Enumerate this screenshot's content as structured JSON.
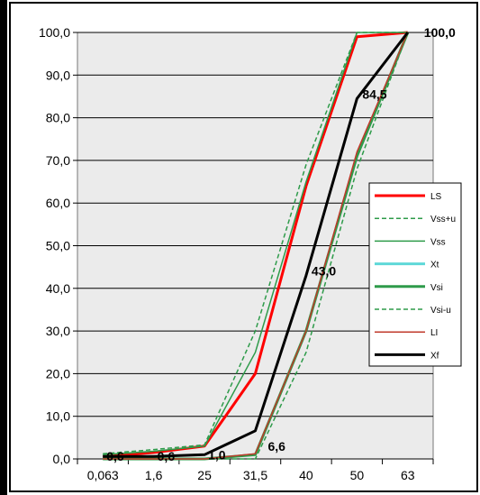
{
  "chart_data": {
    "type": "line",
    "title": "",
    "xlabel": "",
    "ylabel": "",
    "categories": [
      "0,063",
      "1,6",
      "25",
      "31,5",
      "40",
      "50",
      "63"
    ],
    "ylim": [
      0,
      100
    ],
    "y_ticks": [
      "0,0",
      "10,0",
      "20,0",
      "30,0",
      "40,0",
      "50,0",
      "60,0",
      "70,0",
      "80,0",
      "90,0",
      "100,0"
    ],
    "grid": "horizontal",
    "legend_position": "right",
    "series": [
      {
        "name": "LS",
        "color": "#ff0000",
        "dash": "solid",
        "width": 3,
        "values": [
          0.5,
          1.5,
          3,
          20,
          64,
          99,
          100
        ]
      },
      {
        "name": "Vss+u",
        "color": "#2e9b4a",
        "dash": "dashed",
        "width": 1.5,
        "values": [
          1.2,
          2.2,
          3.3,
          30,
          69,
          100,
          100
        ]
      },
      {
        "name": "Vss",
        "color": "#2e9b4a",
        "dash": "solid",
        "width": 1.5,
        "values": [
          1,
          1.8,
          3,
          25,
          65,
          100,
          100
        ]
      },
      {
        "name": "Xt",
        "color": "#5fd8d8",
        "dash": "solid",
        "width": 3,
        "values": [
          null,
          null,
          null,
          null,
          null,
          null,
          null
        ]
      },
      {
        "name": "Vsi",
        "color": "#2e9b4a",
        "dash": "solid",
        "width": 3,
        "values": [
          0,
          0,
          0,
          1,
          30,
          71,
          100
        ]
      },
      {
        "name": "Vsi-u",
        "color": "#2e9b4a",
        "dash": "dashed",
        "width": 1.5,
        "values": [
          0,
          0,
          0,
          0,
          25,
          68,
          100
        ]
      },
      {
        "name": "LI",
        "color": "#c0392b",
        "dash": "solid",
        "width": 1.5,
        "values": [
          0,
          0,
          0,
          1.2,
          30,
          72,
          100
        ]
      },
      {
        "name": "Xf",
        "color": "#000000",
        "dash": "solid",
        "width": 3,
        "values": [
          0.6,
          0.6,
          1.0,
          6.6,
          43.0,
          84.5,
          100.0
        ]
      }
    ],
    "data_labels": [
      {
        "category": "0,063",
        "value": 0.6,
        "text": "0,6"
      },
      {
        "category": "1,6",
        "value": 0.6,
        "text": "0,6"
      },
      {
        "category": "25",
        "value": 1.0,
        "text": "1,0"
      },
      {
        "category": "31,5",
        "value": 6.6,
        "text": "6,6"
      },
      {
        "category": "40",
        "value": 43.0,
        "text": "43,0"
      },
      {
        "category": "50",
        "value": 84.5,
        "text": "84,5"
      },
      {
        "category": "63",
        "value": 100.0,
        "text": "100,0"
      }
    ]
  }
}
